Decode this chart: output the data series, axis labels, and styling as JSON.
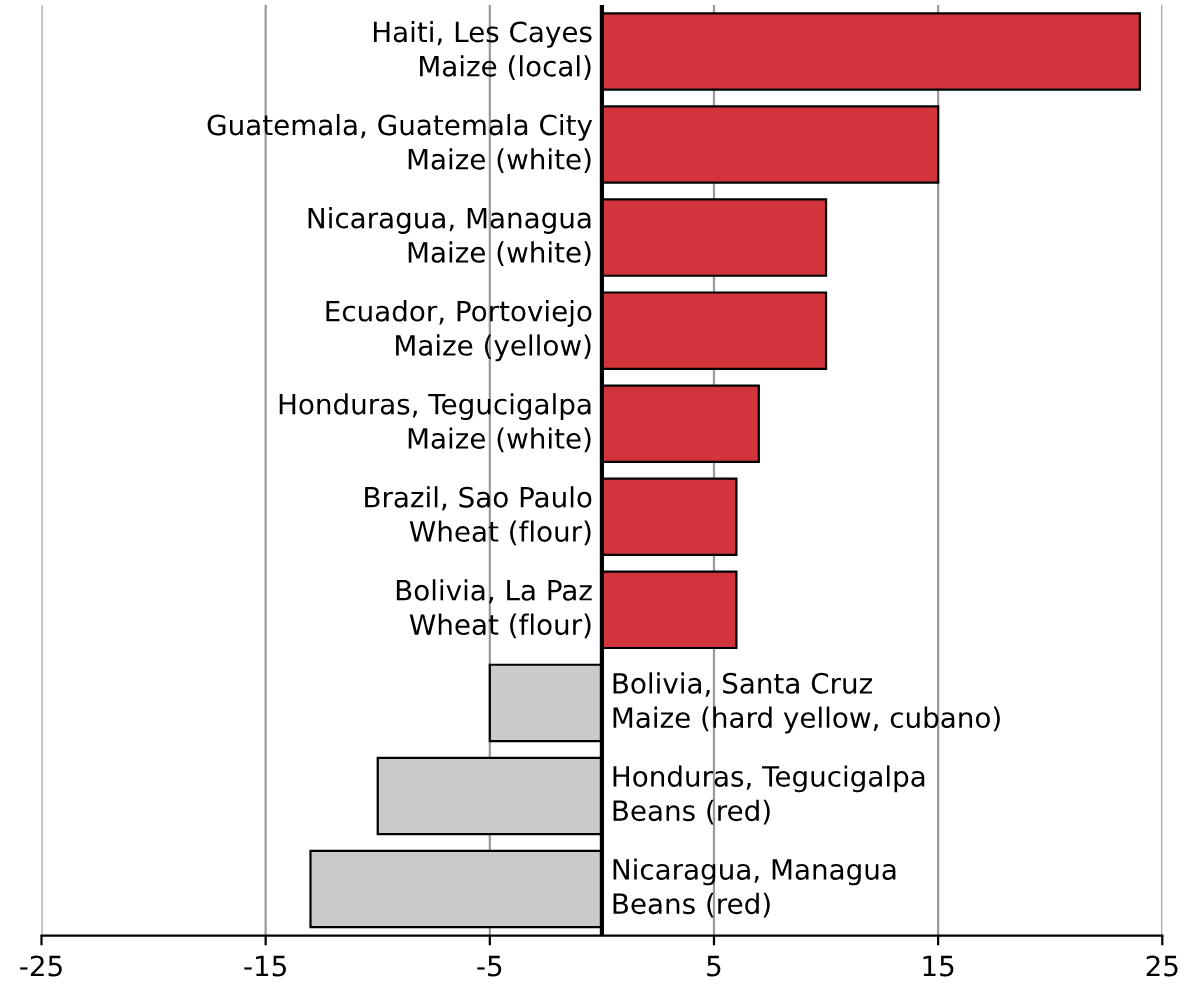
{
  "chart_data": {
    "type": "bar",
    "orientation": "horizontal",
    "categories": [
      "Haiti, Les Cayes\nMaize (local)",
      "Guatemala, Guatemala City\nMaize (white)",
      "Nicaragua, Managua\nMaize (white)",
      "Ecuador, Portoviejo\nMaize (yellow)",
      "Honduras, Tegucigalpa\nMaize (white)",
      "Brazil, Sao Paulo\nWheat (flour)",
      "Bolivia, La Paz\nWheat (flour)",
      "Bolivia, Santa Cruz\nMaize (hard yellow, cubano)",
      "Honduras, Tegucigalpa\nBeans (red)",
      "Nicaragua, Managua\nBeans (red)"
    ],
    "values": [
      24,
      15,
      10,
      10,
      7,
      6,
      6,
      -5,
      -10,
      -13
    ],
    "colors": [
      "#d1343a",
      "#d1343a",
      "#d1343a",
      "#d1343a",
      "#d1343a",
      "#d1343a",
      "#d1343a",
      "#c9cacc",
      "#c9cacc",
      "#c9cacc"
    ],
    "xlim": [
      -25,
      25
    ],
    "xticks": [
      -25,
      -15,
      -5,
      5,
      15,
      25
    ],
    "grid": "x",
    "legend": false
  }
}
